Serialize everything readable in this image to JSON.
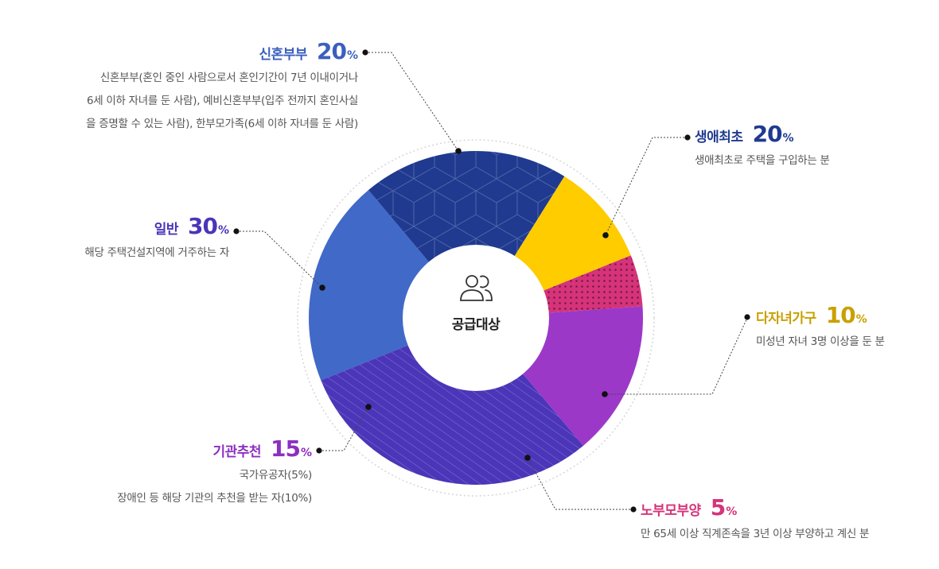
{
  "chart_data": {
    "type": "pie",
    "center_label": "공급대상",
    "center_icon": "users-icon",
    "slices": [
      {
        "name": "신혼부부",
        "value": 20,
        "color": "#4169c8",
        "pattern": "none",
        "description": [
          "신혼부부(혼인 중인 사람으로서 혼인기간이 7년 이내이거나",
          "6세 이하 자녀를 둔 사람), 예비신혼부부(입주 전까지 혼인사실",
          "을 증명할 수 있는 사람), 한부모가족(6세 이하 자녀를 둔 사람)"
        ]
      },
      {
        "name": "생애최초",
        "value": 20,
        "color": "#1f3a8f",
        "pattern": "hexagon",
        "description": [
          "생애최초로 주택을 구입하는 분"
        ]
      },
      {
        "name": "다자녀가구",
        "value": 10,
        "color": "#ffcc00",
        "pattern": "none",
        "description": [
          "미성년 자녀 3명 이상을 둔 분"
        ]
      },
      {
        "name": "노부모부양",
        "value": 5,
        "color": "#d6337a",
        "pattern": "dots",
        "description": [
          "만 65세 이상 직계존속을 3년 이상 부양하고 계신 분"
        ]
      },
      {
        "name": "기관추천",
        "value": 15,
        "color": "#9c38c8",
        "pattern": "none",
        "description": [
          "국가유공자(5%)",
          "장애인 등 해당 기관의 추천을 받는 자(10%)"
        ]
      },
      {
        "name": "일반",
        "value": 30,
        "color": "#4b35b8",
        "pattern": "stripes",
        "description": [
          "해당 주택건설지역에 거주하는 자"
        ]
      }
    ],
    "label_colors": {
      "신혼부부": "#3a5fbf",
      "생애최초": "#1f3a8f",
      "다자녀가구": "#c9a000",
      "노부모부양": "#d6337a",
      "기관추천": "#8c2fc0",
      "일반": "#4b35b8"
    },
    "percent_sign": "%"
  }
}
